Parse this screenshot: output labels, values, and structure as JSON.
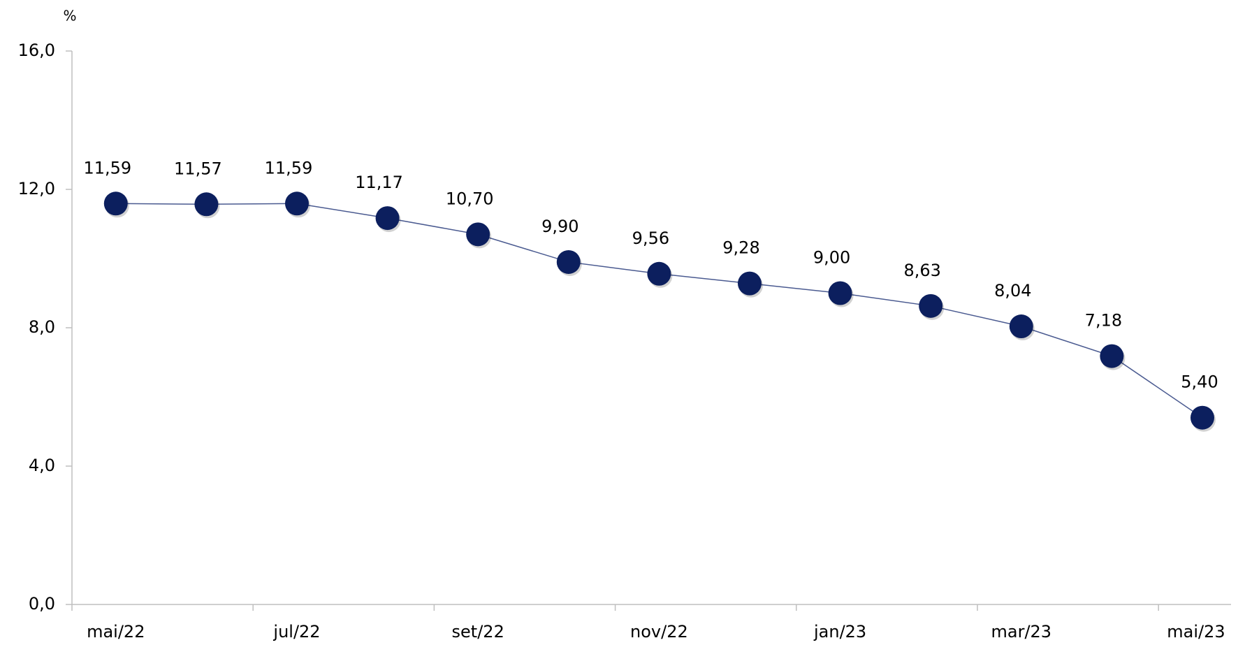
{
  "chart_data": {
    "type": "line",
    "y_label": "%",
    "categories": [
      "mai/22",
      null,
      "jul/22",
      null,
      "set/22",
      null,
      "nov/22",
      null,
      "jan/23",
      null,
      "mar/23",
      null,
      "mai/23"
    ],
    "series": [
      {
        "name": null,
        "color": "#0c1f5e",
        "values": [
          11.59,
          11.57,
          11.59,
          11.17,
          10.7,
          9.9,
          9.56,
          9.28,
          9.0,
          8.63,
          8.04,
          7.18,
          5.4
        ],
        "value_labels": [
          "11,59",
          "11,57",
          "11,59",
          "11,17",
          "10,70",
          "9,90",
          "9,56",
          "9,28",
          "9,00",
          "8,63",
          "8,04",
          "7,18",
          "5,40"
        ]
      }
    ],
    "ylim": [
      0,
      16
    ],
    "yticks": [
      {
        "value": 0,
        "label": "0,0"
      },
      {
        "value": 4,
        "label": "4,0"
      },
      {
        "value": 8,
        "label": "8,0"
      },
      {
        "value": 12,
        "label": "12,0"
      },
      {
        "value": 16,
        "label": "16,0"
      }
    ],
    "grid": false
  }
}
